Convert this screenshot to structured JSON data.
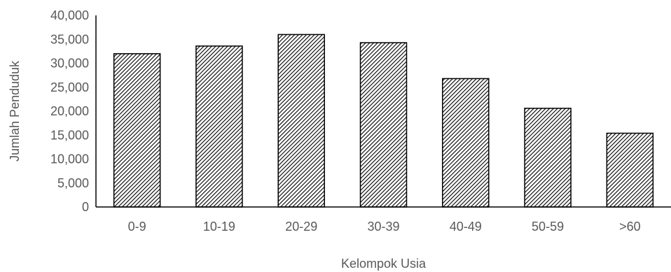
{
  "chart_data": {
    "type": "bar",
    "title": "",
    "xlabel": "Kelompok Usia",
    "ylabel": "Jumlah Penduduk",
    "categories": [
      "0-9",
      "10-19",
      "20-29",
      "30-39",
      "40-49",
      "50-59",
      ">60"
    ],
    "values": [
      32000,
      33600,
      36000,
      34300,
      26800,
      20600,
      15400
    ],
    "ylim": [
      0,
      40000
    ],
    "yticks": [
      0,
      5000,
      10000,
      15000,
      20000,
      25000,
      30000,
      35000,
      40000
    ],
    "ytick_labels": [
      "0",
      "5,000",
      "10,000",
      "15,000",
      "20,000",
      "25,000",
      "30,000",
      "35,000",
      "40,000"
    ],
    "grid": false,
    "legend": "none",
    "bar_fill": "diagonal-hatch",
    "bar_edge_color": "#000000",
    "text_color": "#595959"
  }
}
